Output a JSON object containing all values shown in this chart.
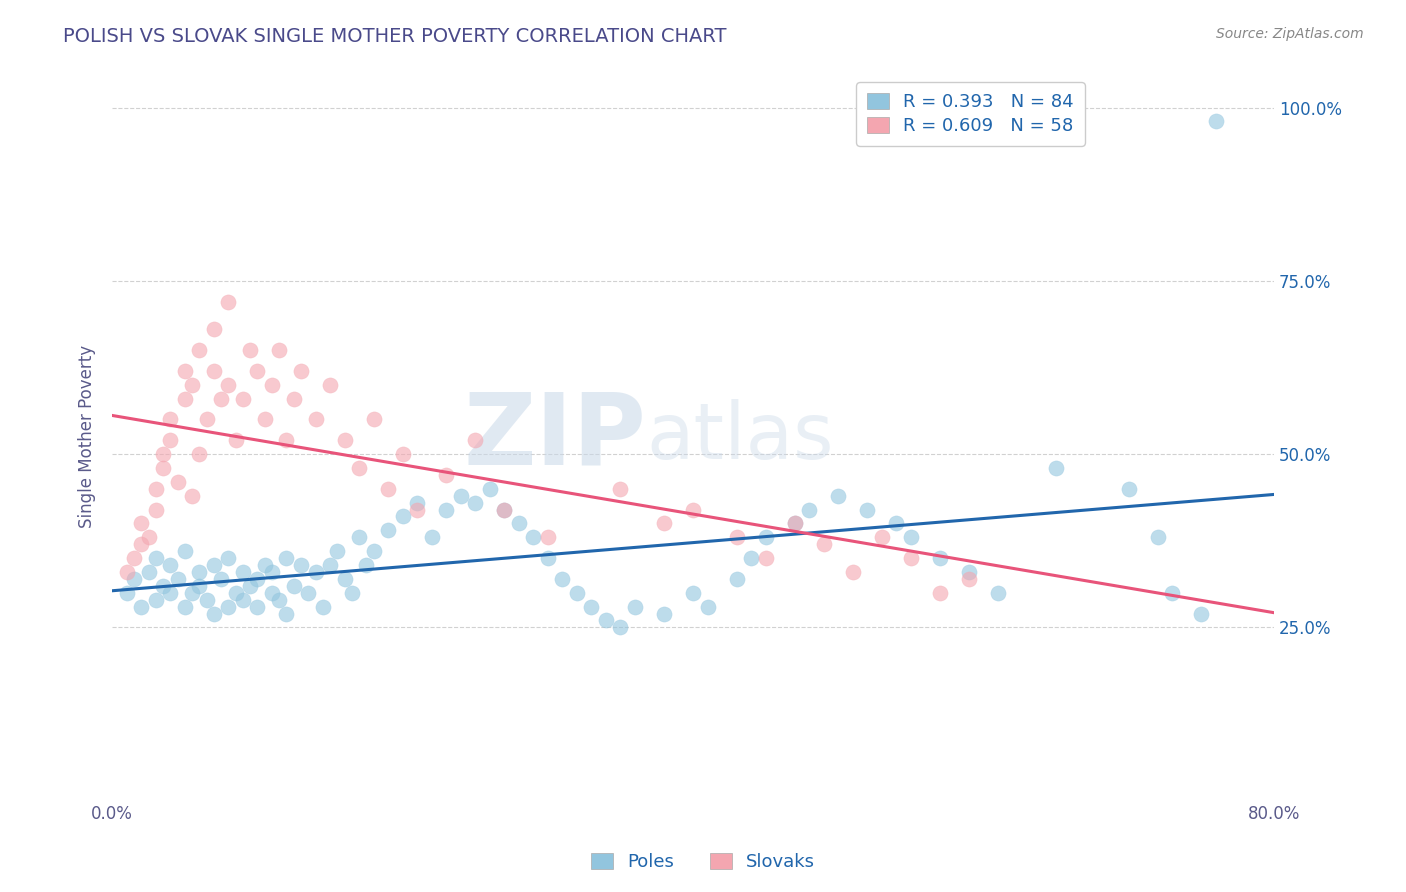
{
  "title": "POLISH VS SLOVAK SINGLE MOTHER POVERTY CORRELATION CHART",
  "source": "Source: ZipAtlas.com",
  "xlim": [
    0.0,
    80.0
  ],
  "ylim": [
    0.0,
    105.0
  ],
  "legend_blue_label": "Poles",
  "legend_pink_label": "Slovaks",
  "blue_color": "#92c5de",
  "pink_color": "#f4a6b0",
  "blue_line_color": "#2166ac",
  "pink_line_color": "#e8547a",
  "watermark_zip": "ZIP",
  "watermark_atlas": "atlas",
  "title_color": "#4a4a8a",
  "axis_label_color": "#5a5a8a",
  "background_color": "#ffffff",
  "grid_color": "#cccccc",
  "blue_r": 0.393,
  "blue_n": 84,
  "pink_r": 0.609,
  "pink_n": 58,
  "blue_scatter_x": [
    1.0,
    1.5,
    2.0,
    2.5,
    3.0,
    3.0,
    3.5,
    4.0,
    4.0,
    4.5,
    5.0,
    5.0,
    5.5,
    6.0,
    6.0,
    6.5,
    7.0,
    7.0,
    7.5,
    8.0,
    8.0,
    8.5,
    9.0,
    9.0,
    9.5,
    10.0,
    10.0,
    10.5,
    11.0,
    11.0,
    11.5,
    12.0,
    12.0,
    12.5,
    13.0,
    13.5,
    14.0,
    14.5,
    15.0,
    15.5,
    16.0,
    16.5,
    17.0,
    17.5,
    18.0,
    19.0,
    20.0,
    21.0,
    22.0,
    23.0,
    24.0,
    25.0,
    26.0,
    27.0,
    28.0,
    29.0,
    30.0,
    31.0,
    32.0,
    33.0,
    34.0,
    35.0,
    36.0,
    38.0,
    40.0,
    41.0,
    43.0,
    44.0,
    45.0,
    47.0,
    48.0,
    50.0,
    52.0,
    54.0,
    55.0,
    57.0,
    59.0,
    61.0,
    65.0,
    70.0,
    72.0,
    73.0,
    75.0,
    76.0
  ],
  "blue_scatter_y": [
    30.0,
    32.0,
    28.0,
    33.0,
    29.0,
    35.0,
    31.0,
    30.0,
    34.0,
    32.0,
    28.0,
    36.0,
    30.0,
    33.0,
    31.0,
    29.0,
    34.0,
    27.0,
    32.0,
    35.0,
    28.0,
    30.0,
    33.0,
    29.0,
    31.0,
    32.0,
    28.0,
    34.0,
    30.0,
    33.0,
    29.0,
    35.0,
    27.0,
    31.0,
    34.0,
    30.0,
    33.0,
    28.0,
    34.0,
    36.0,
    32.0,
    30.0,
    38.0,
    34.0,
    36.0,
    39.0,
    41.0,
    43.0,
    38.0,
    42.0,
    44.0,
    43.0,
    45.0,
    42.0,
    40.0,
    38.0,
    35.0,
    32.0,
    30.0,
    28.0,
    26.0,
    25.0,
    28.0,
    27.0,
    30.0,
    28.0,
    32.0,
    35.0,
    38.0,
    40.0,
    42.0,
    44.0,
    42.0,
    40.0,
    38.0,
    35.0,
    33.0,
    30.0,
    48.0,
    45.0,
    38.0,
    30.0,
    27.0,
    98.0
  ],
  "pink_scatter_x": [
    1.0,
    1.5,
    2.0,
    2.0,
    2.5,
    3.0,
    3.0,
    3.5,
    3.5,
    4.0,
    4.0,
    4.5,
    5.0,
    5.0,
    5.5,
    5.5,
    6.0,
    6.0,
    6.5,
    7.0,
    7.0,
    7.5,
    8.0,
    8.0,
    8.5,
    9.0,
    9.5,
    10.0,
    10.5,
    11.0,
    11.5,
    12.0,
    12.5,
    13.0,
    14.0,
    15.0,
    16.0,
    17.0,
    18.0,
    19.0,
    20.0,
    21.0,
    23.0,
    25.0,
    27.0,
    30.0,
    35.0,
    38.0,
    40.0,
    43.0,
    45.0,
    47.0,
    49.0,
    51.0,
    53.0,
    55.0,
    57.0,
    59.0
  ],
  "pink_scatter_y": [
    33.0,
    35.0,
    37.0,
    40.0,
    38.0,
    42.0,
    45.0,
    48.0,
    50.0,
    52.0,
    55.0,
    46.0,
    58.0,
    62.0,
    44.0,
    60.0,
    65.0,
    50.0,
    55.0,
    62.0,
    68.0,
    58.0,
    60.0,
    72.0,
    52.0,
    58.0,
    65.0,
    62.0,
    55.0,
    60.0,
    65.0,
    52.0,
    58.0,
    62.0,
    55.0,
    60.0,
    52.0,
    48.0,
    55.0,
    45.0,
    50.0,
    42.0,
    47.0,
    52.0,
    42.0,
    38.0,
    45.0,
    40.0,
    42.0,
    38.0,
    35.0,
    40.0,
    37.0,
    33.0,
    38.0,
    35.0,
    30.0,
    32.0
  ]
}
